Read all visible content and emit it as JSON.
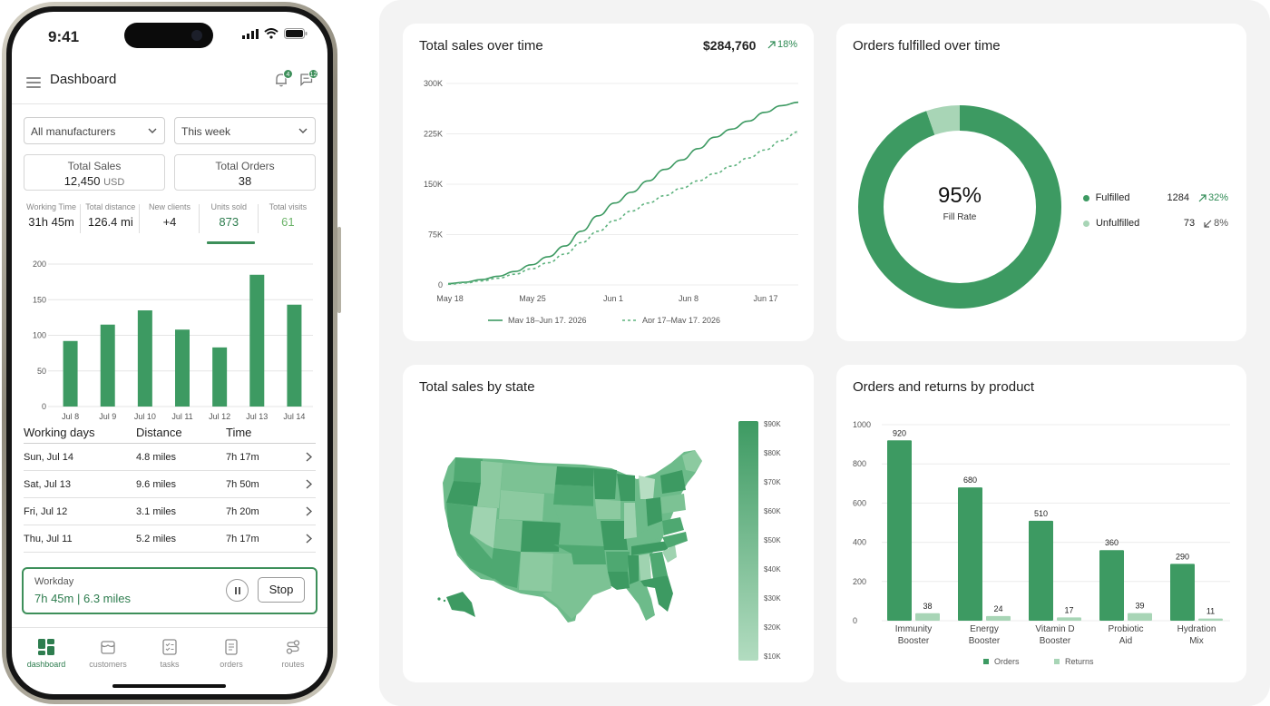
{
  "phone": {
    "status_time": "9:41",
    "app_title": "Dashboard",
    "notif_count": "4",
    "message_count": "12",
    "filter_manufacturer": "All manufacturers",
    "filter_period": "This week",
    "total_sales": {
      "label": "Total Sales",
      "value": "12,450",
      "unit": "USD"
    },
    "total_orders": {
      "label": "Total Orders",
      "value": "38"
    },
    "metrics": [
      {
        "label": "Working Time",
        "value": "31h 45m"
      },
      {
        "label": "Total distance",
        "value": "126.4 mi"
      },
      {
        "label": "New clients",
        "value": "+4"
      },
      {
        "label": "Units sold",
        "value": "873"
      },
      {
        "label": "Total visits",
        "value": "61"
      }
    ],
    "table": {
      "headers": [
        "Working days",
        "Distance",
        "Time"
      ],
      "rows": [
        [
          "Sun, Jul 14",
          "4.8 miles",
          "7h 17m"
        ],
        [
          "Sat, Jul 13",
          "9.6 miles",
          "7h 50m"
        ],
        [
          "Fri, Jul 12",
          "3.1 miles",
          "7h 20m"
        ],
        [
          "Thu, Jul 11",
          "5.2 miles",
          "7h 17m"
        ]
      ]
    },
    "workday": {
      "label": "Workday",
      "time": "7h 45m",
      "distance": "6.3 miles",
      "stop": "Stop"
    },
    "tabs": [
      "dashboard",
      "customers",
      "tasks",
      "orders",
      "routes"
    ],
    "accent": "#3d8f5a"
  },
  "cards": {
    "sales_time": {
      "title": "Total sales over time",
      "total": "$284,760",
      "change": "18%"
    },
    "fulfilled": {
      "title": "Orders fulfilled over time",
      "center_value": "95%",
      "center_label": "Fill Rate",
      "legend": [
        {
          "label": "Fulfilled",
          "value": "1284",
          "change": "32%",
          "color": "#3d9a62"
        },
        {
          "label": "Unfulfilled",
          "value": "73",
          "change": "8%",
          "color": "#a8d5b6"
        }
      ]
    },
    "states": {
      "title": "Total sales by state",
      "scale": [
        "$90K",
        "$80K",
        "$70K",
        "$60K",
        "$50K",
        "$40K",
        "$30K",
        "$20K",
        "$10K"
      ]
    },
    "products": {
      "title": "Orders and returns by product"
    }
  },
  "chart_data": [
    {
      "type": "bar",
      "categories": [
        "Jul 8",
        "Jul 9",
        "Jul 10",
        "Jul 11",
        "Jul 12",
        "Jul 13",
        "Jul 14"
      ],
      "values": [
        92,
        115,
        135,
        108,
        83,
        185,
        143
      ],
      "yticks": [
        0,
        50,
        100,
        150,
        200
      ],
      "ylim": [
        0,
        200
      ]
    },
    {
      "type": "line",
      "title": "Total sales over time",
      "xticks": [
        "May 18",
        "May 25",
        "Jun 1",
        "Jun 8",
        "Jun 17"
      ],
      "yticks": [
        "0",
        "75K",
        "150K",
        "225K",
        "300K"
      ],
      "ylim": [
        0,
        300000
      ],
      "series": [
        {
          "name": "May 18–Jun 17, 2026",
          "style": "solid",
          "values": [
            2000,
            4000,
            8000,
            13000,
            20000,
            30000,
            42000,
            58000,
            80000,
            103000,
            122000,
            138000,
            155000,
            172000,
            186000,
            203000,
            220000,
            232000,
            244000,
            257000,
            267000,
            272000
          ]
        },
        {
          "name": "Apr 17–May 17, 2026",
          "style": "dashed",
          "values": [
            1000,
            3000,
            6000,
            10000,
            16000,
            24000,
            33000,
            46000,
            63000,
            80000,
            96000,
            110000,
            122000,
            133000,
            144000,
            155000,
            166000,
            177000,
            189000,
            201000,
            215000,
            228000
          ]
        }
      ]
    },
    {
      "type": "pie",
      "title": "Orders fulfilled over time",
      "categories": [
        "Fulfilled",
        "Unfulfilled"
      ],
      "values": [
        1284,
        73
      ]
    },
    {
      "type": "bar",
      "title": "Orders and returns by product",
      "categories": [
        "Immunity Booster",
        "Energy Booster",
        "Vitamin D Booster",
        "Probiotic Aid",
        "Hydration Mix"
      ],
      "series": [
        {
          "name": "Orders",
          "values": [
            920,
            680,
            510,
            360,
            290
          ],
          "color": "#3d9a62"
        },
        {
          "name": "Returns",
          "values": [
            38,
            24,
            17,
            39,
            11
          ],
          "color": "#a8d5b6"
        }
      ],
      "yticks": [
        0,
        200,
        400,
        600,
        800,
        1000
      ],
      "ylim": [
        0,
        1000
      ]
    }
  ]
}
